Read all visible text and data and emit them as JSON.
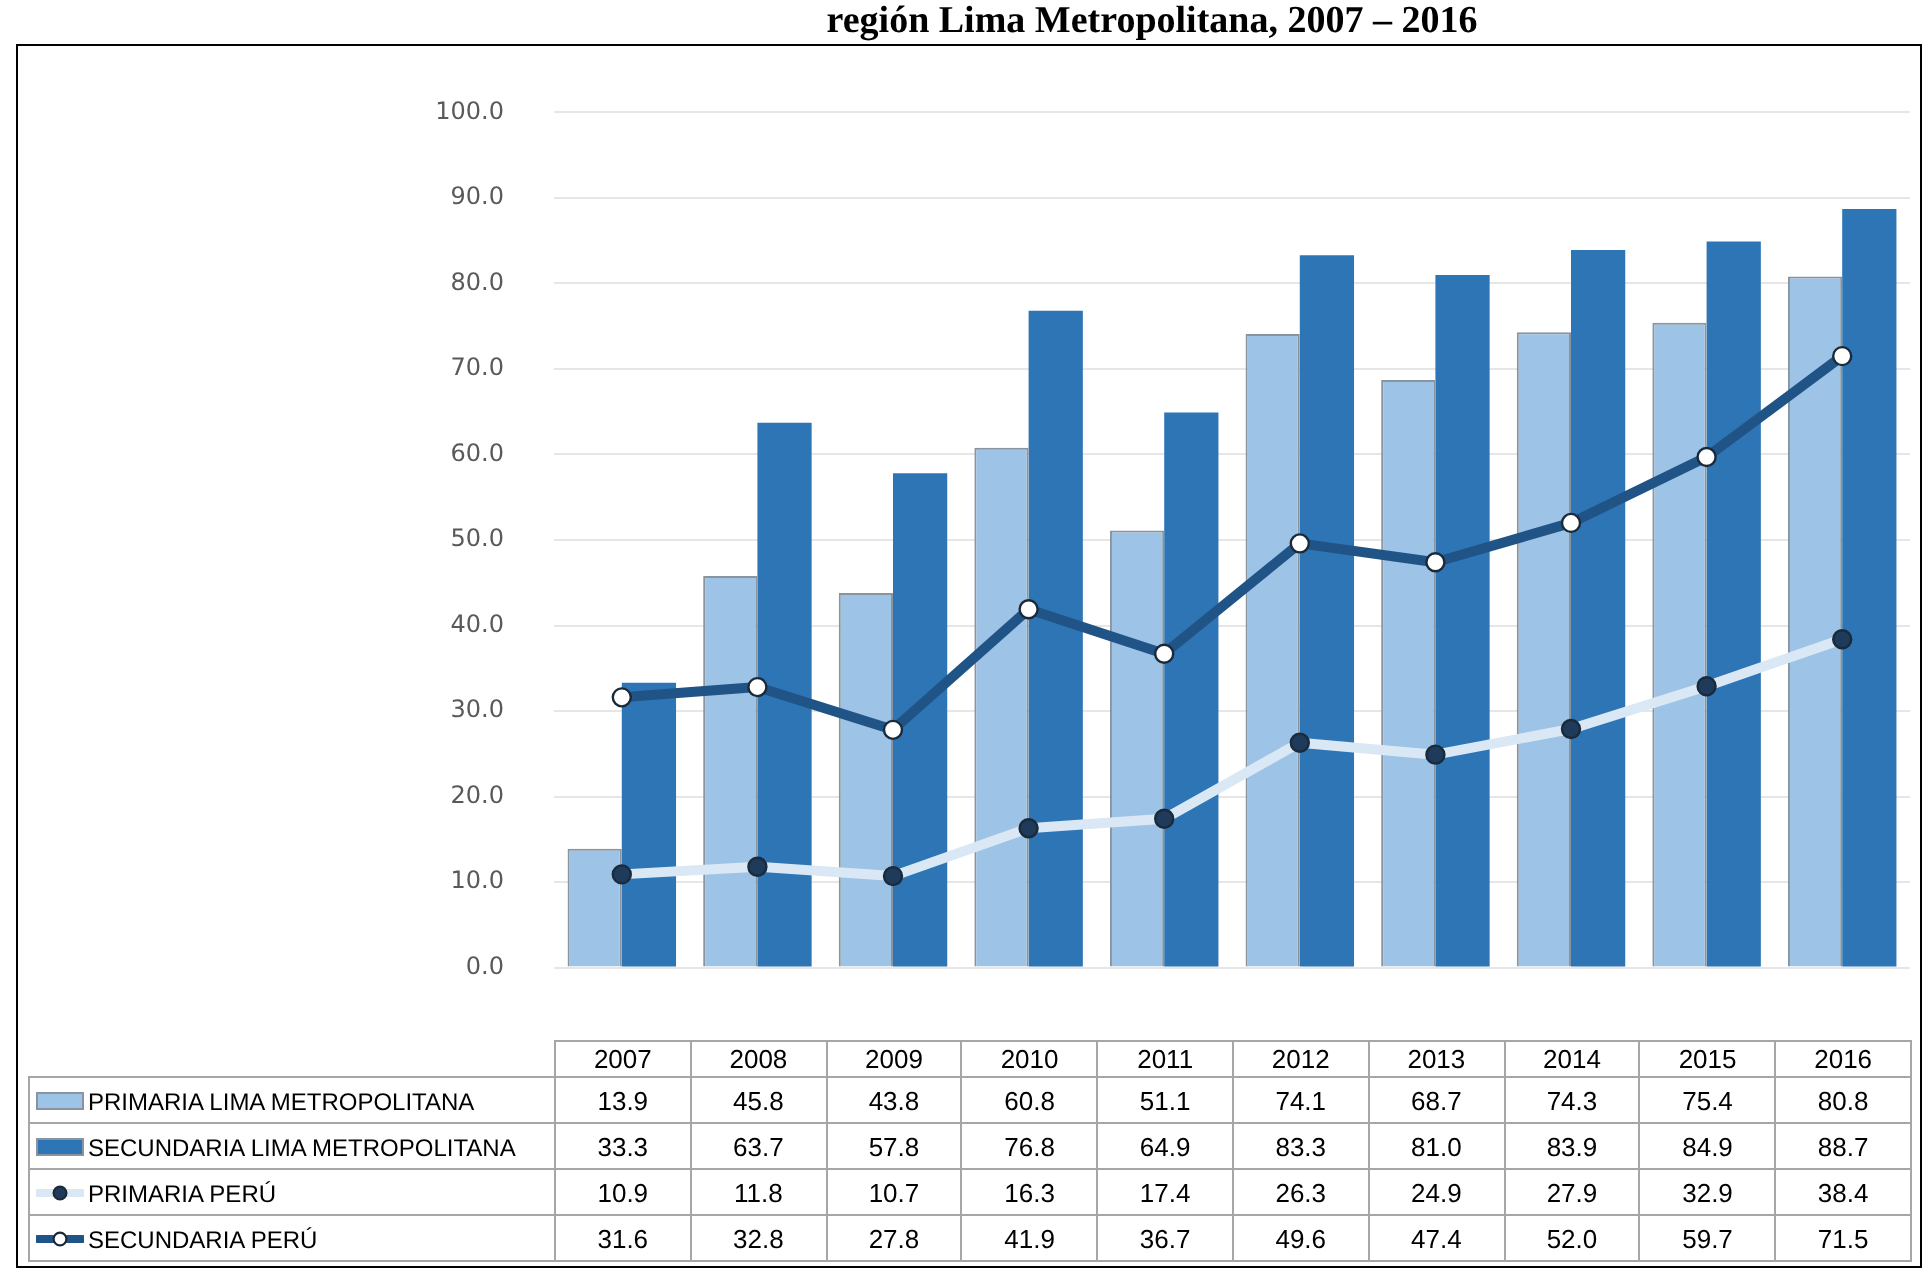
{
  "chart_data": {
    "type": "bar",
    "title": "región Lima Metropolitana, 2007 – 2016",
    "categories": [
      "2007",
      "2008",
      "2009",
      "2010",
      "2011",
      "2012",
      "2013",
      "2014",
      "2015",
      "2016"
    ],
    "series": [
      {
        "name": "PRIMARIA LIMA METROPOLITANA",
        "color": "#9dc3e6",
        "values": [
          13.9,
          45.8,
          43.8,
          60.8,
          51.1,
          74.1,
          68.7,
          74.3,
          75.4,
          80.8
        ],
        "value_labels": [
          "13.9",
          "45.8",
          "43.8",
          "60.8",
          "51.1",
          "74.1",
          "68.7",
          "74.3",
          "75.4",
          "80.8"
        ]
      },
      {
        "name": "SECUNDARIA LIMA METROPOLITANA",
        "color": "#2e75b6",
        "values": [
          33.3,
          63.7,
          57.8,
          76.8,
          64.9,
          83.3,
          81.0,
          83.9,
          84.9,
          88.7
        ],
        "value_labels": [
          "33.3",
          "63.7",
          "57.8",
          "76.8",
          "64.9",
          "83.3",
          "81.0",
          "83.9",
          "84.9",
          "88.7"
        ]
      },
      {
        "name": "PRIMARIA PERÚ",
        "type": "line",
        "color": "#dae8f5",
        "values": [
          10.9,
          11.8,
          10.7,
          16.3,
          17.4,
          26.3,
          24.9,
          27.9,
          32.9,
          38.4
        ],
        "value_labels": [
          "10.9",
          "11.8",
          "10.7",
          "16.3",
          "17.4",
          "26.3",
          "24.9",
          "27.9",
          "32.9",
          "38.4"
        ]
      },
      {
        "name": "SECUNDARIA PERÚ",
        "type": "line",
        "color": "#215486",
        "values": [
          31.6,
          32.8,
          27.8,
          41.9,
          36.7,
          49.6,
          47.4,
          52.0,
          59.7,
          71.5
        ],
        "value_labels": [
          "31.6",
          "32.8",
          "27.8",
          "41.9",
          "36.7",
          "49.6",
          "47.4",
          "52.0",
          "59.7",
          "71.5"
        ]
      }
    ],
    "ylim": [
      0,
      100
    ],
    "yticks": [
      {
        "value": 0,
        "label": "0.0"
      },
      {
        "value": 10,
        "label": "10.0"
      },
      {
        "value": 20,
        "label": "20.0"
      },
      {
        "value": 30,
        "label": "30.0"
      },
      {
        "value": 40,
        "label": "40.0"
      },
      {
        "value": 50,
        "label": "50.0"
      },
      {
        "value": 60,
        "label": "60.0"
      },
      {
        "value": 70,
        "label": "70.0"
      },
      {
        "value": 80,
        "label": "80.0"
      },
      {
        "value": 90,
        "label": "90.0"
      },
      {
        "value": 100,
        "label": "100.0"
      }
    ],
    "grid": "y",
    "legend": "bottom",
    "marker": "circle",
    "line_style": "solid"
  }
}
